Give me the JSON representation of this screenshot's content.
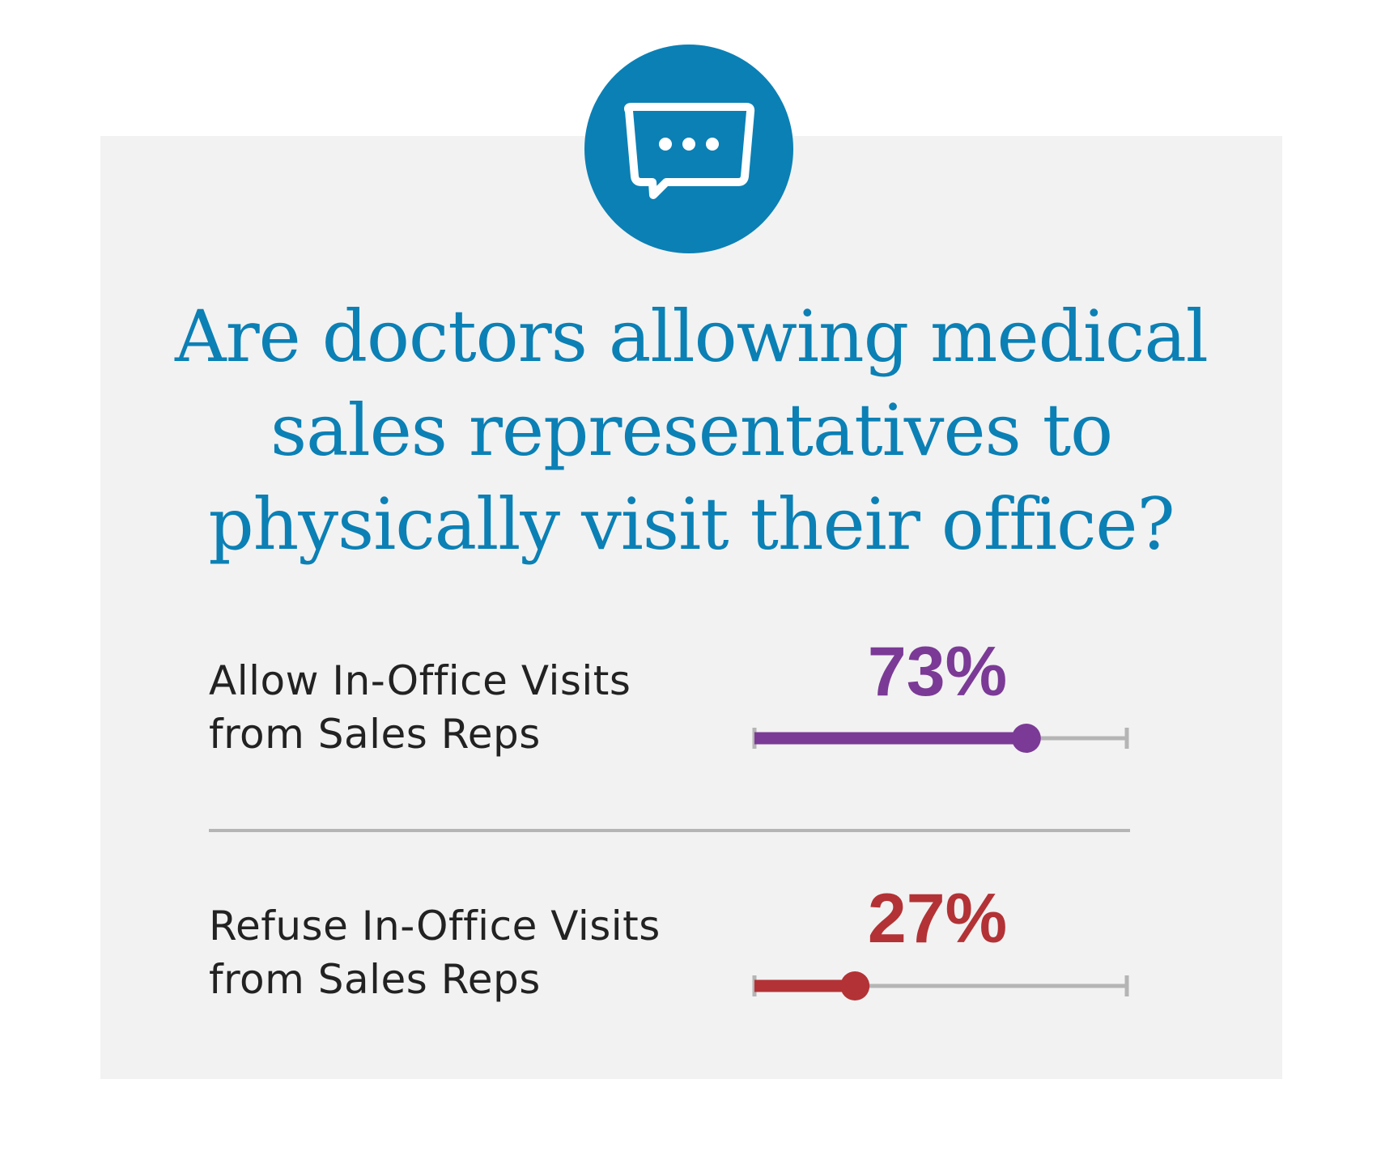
{
  "title_lines": [
    "Are doctors allowing medical",
    "sales representatives to",
    "physically visit their office?"
  ],
  "icon": "speech-bubble-ellipsis-icon",
  "colors": {
    "accent": "#0b80b5",
    "panel": "#f2f2f2",
    "track": "#b5b5b5",
    "allow": "#7b3a96",
    "refuse": "#b33235",
    "label": "#222222"
  },
  "chart_data": {
    "type": "bar",
    "orientation": "horizontal",
    "ylim": [
      0,
      100
    ],
    "unit": "%",
    "categories": [
      "Allow In-Office Visits from Sales Reps",
      "Refuse In-Office Visits from Sales Reps"
    ],
    "values": [
      73,
      27
    ],
    "items": [
      {
        "label_lines": [
          "Allow In-Office Visits",
          "from Sales Reps"
        ],
        "value": 73,
        "display": "73%",
        "color": "#7b3a96"
      },
      {
        "label_lines": [
          "Refuse In-Office Visits",
          "from Sales Reps"
        ],
        "value": 27,
        "display": "27%",
        "color": "#b33235"
      }
    ]
  }
}
